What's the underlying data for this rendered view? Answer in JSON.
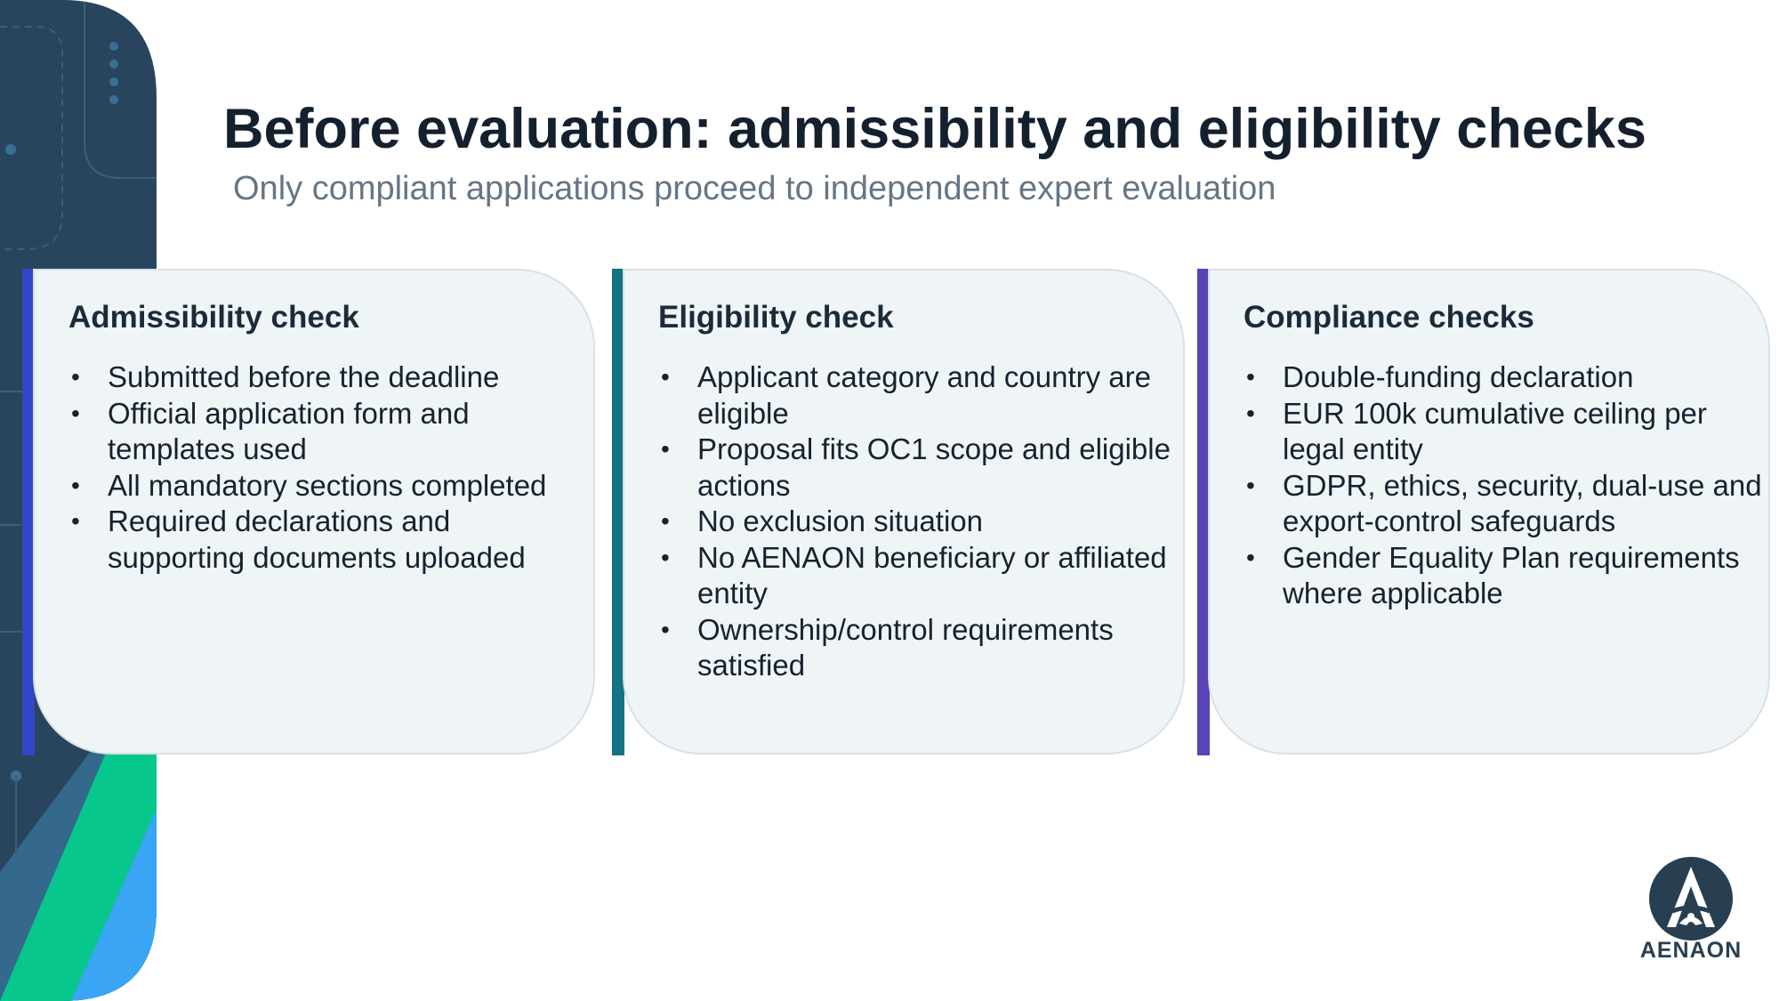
{
  "slide": {
    "title": "Before evaluation: admissibility and eligibility checks",
    "subtitle": "Only compliant applications proceed to independent expert evaluation"
  },
  "cards": [
    {
      "title": "Admissibility check",
      "accent": "#3346c8",
      "items": [
        "Submitted before the deadline",
        "Official application form and templates used",
        "All mandatory sections completed",
        "Required declarations and supporting documents uploaded"
      ]
    },
    {
      "title": "Eligibility check",
      "accent": "#137383",
      "items": [
        "Applicant category and country are eligible",
        "Proposal fits OC1 scope and eligible actions",
        "No exclusion situation",
        "No AENAON beneficiary or affiliated entity",
        "Ownership/control requirements satisfied"
      ]
    },
    {
      "title": "Compliance checks",
      "accent": "#5843b7",
      "items": [
        "Double-funding declaration",
        "EUR 100k cumulative ceiling per legal entity",
        "GDPR, ethics, security, dual-use and export-control safeguards",
        "Gender Equality Plan requirements where applicable"
      ]
    }
  ],
  "logo": {
    "text": "AENAON",
    "icon": "aenaon-logo-icon"
  },
  "colors": {
    "art_dark": "#28455d",
    "art_mid": "#34698b",
    "art_green": "#07c78d",
    "art_blue": "#3aa4f5",
    "card_bg": "#eff4f7"
  }
}
